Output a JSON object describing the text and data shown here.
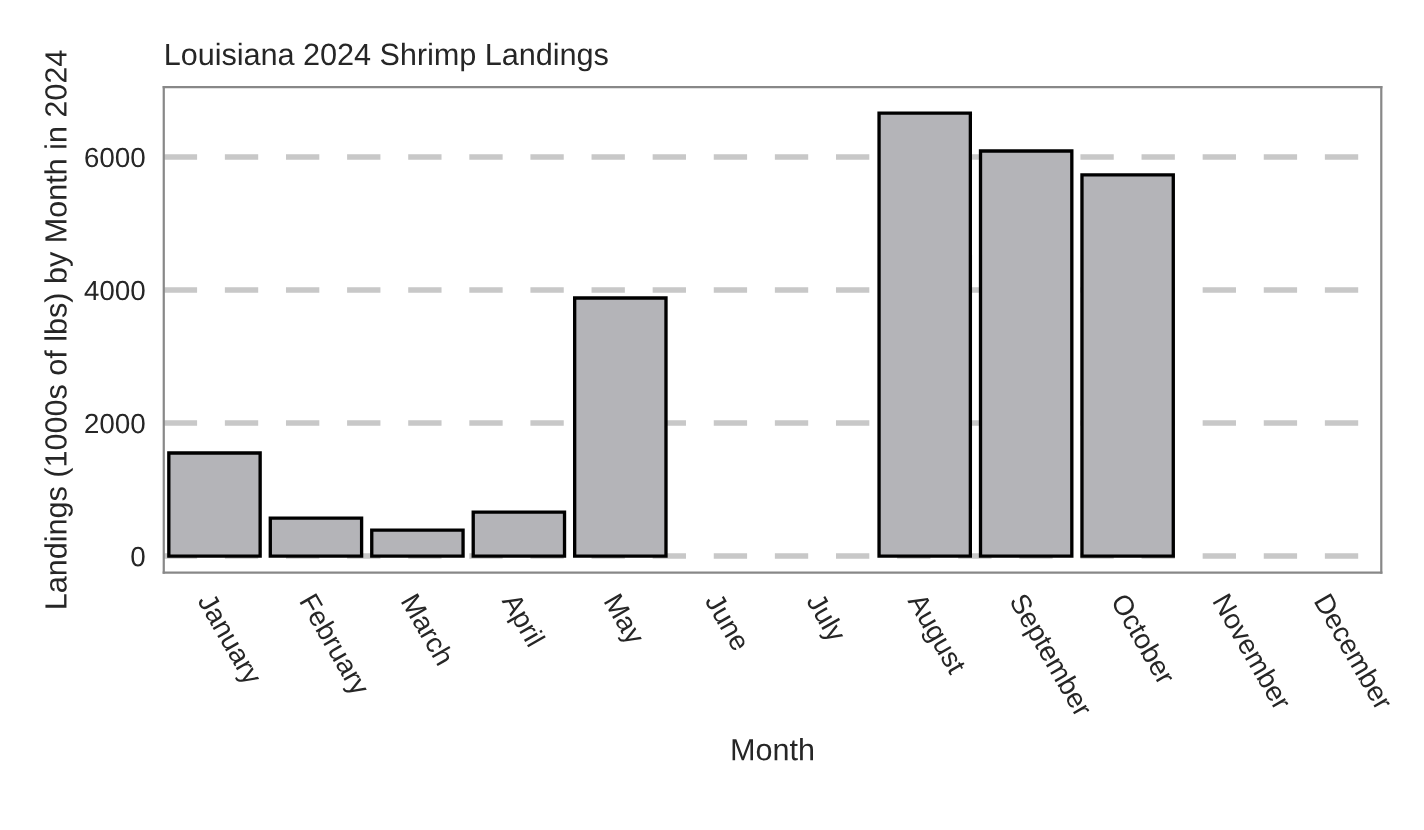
{
  "chart_data": {
    "type": "bar",
    "title": "Louisiana 2024 Shrimp Landings",
    "xlabel": "Month",
    "ylabel": "Landings (1000s of lbs) by Month in 2024",
    "categories": [
      "January",
      "February",
      "March",
      "April",
      "May",
      "June",
      "July",
      "August",
      "September",
      "October",
      "November",
      "December"
    ],
    "values": [
      1550,
      570,
      390,
      660,
      3880,
      null,
      null,
      6660,
      6090,
      5730,
      null,
      null
    ],
    "color": "#b4b4b8",
    "ylim": [
      -250,
      7050
    ],
    "yticks": [
      0,
      2000,
      4000,
      6000
    ],
    "grid": "y",
    "legend": false
  }
}
